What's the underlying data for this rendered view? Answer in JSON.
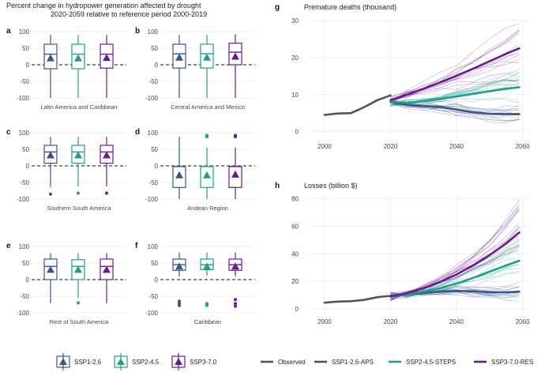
{
  "title_line1": "Percent change in hydropower generation affected by drought",
  "title_line2": "2020-2059 relative to reference period 2000-2019",
  "colors": {
    "ssp126": "#3b528b",
    "ssp245": "#1f9e89",
    "ssp370": "#6a1b8a",
    "observed": "#555555"
  },
  "chart_data": [
    {
      "type": "box",
      "title": "Percent change in hydropower generation affected by drought 2020-2059 relative to reference period 2000-2019",
      "ylim": [
        -100,
        100
      ],
      "yticks": [
        "100",
        "50",
        "0",
        "-50",
        "-100"
      ],
      "series_names": [
        "SSP1-2.6",
        "SSP2-4.5",
        "SSP3-7.0"
      ],
      "panels": [
        {
          "letter": "a",
          "region": "Latin America and Caribbean",
          "boxes": [
            {
              "series": "SSP1-2.6",
              "whisker_low": -100,
              "q1": -12,
              "median": 32,
              "q3": 62,
              "whisker_high": 90,
              "mean": 20,
              "outliers": []
            },
            {
              "series": "SSP2-4.5",
              "whisker_low": -100,
              "q1": -12,
              "median": 32,
              "q3": 62,
              "whisker_high": 90,
              "mean": 20,
              "outliers": []
            },
            {
              "series": "SSP3-7.0",
              "whisker_low": -100,
              "q1": -10,
              "median": 32,
              "q3": 62,
              "whisker_high": 90,
              "mean": 21,
              "outliers": []
            }
          ]
        },
        {
          "letter": "b",
          "region": "Central America and Mexico",
          "boxes": [
            {
              "series": "SSP1-2.6",
              "whisker_low": -100,
              "q1": -10,
              "median": 33,
              "q3": 62,
              "whisker_high": 90,
              "mean": 22,
              "outliers": []
            },
            {
              "series": "SSP2-4.5",
              "whisker_low": -100,
              "q1": -10,
              "median": 33,
              "q3": 62,
              "whisker_high": 90,
              "mean": 22,
              "outliers": []
            },
            {
              "series": "SSP3-7.0",
              "whisker_low": -100,
              "q1": 0,
              "median": 38,
              "q3": 65,
              "whisker_high": 92,
              "mean": 25,
              "outliers": []
            }
          ]
        },
        {
          "letter": "c",
          "region": "Southern South America",
          "boxes": [
            {
              "series": "SSP1-2.6",
              "whisker_low": -65,
              "q1": 8,
              "median": 42,
              "q3": 62,
              "whisker_high": 88,
              "mean": 32,
              "outliers": [
                -85
              ]
            },
            {
              "series": "SSP2-4.5",
              "whisker_low": -62,
              "q1": 8,
              "median": 42,
              "q3": 62,
              "whisker_high": 88,
              "mean": 32,
              "outliers": [
                -82
              ]
            },
            {
              "series": "SSP3-7.0",
              "whisker_low": -62,
              "q1": 8,
              "median": 42,
              "q3": 62,
              "whisker_high": 88,
              "mean": 32,
              "outliers": [
                -82
              ]
            }
          ]
        },
        {
          "letter": "d",
          "region": "Andean Region",
          "boxes": [
            {
              "series": "SSP1-2.6",
              "whisker_low": -100,
              "q1": -65,
              "median": -2,
              "q3": -2,
              "whisker_high": 88,
              "mean": -28,
              "outliers": []
            },
            {
              "series": "SSP2-4.5",
              "whisker_low": -100,
              "q1": -65,
              "median": -2,
              "q3": -2,
              "whisker_high": 55,
              "mean": -28,
              "outliers": [
                88,
                92
              ]
            },
            {
              "series": "SSP3-7.0",
              "whisker_low": -100,
              "q1": -65,
              "median": -2,
              "q3": -2,
              "whisker_high": 55,
              "mean": -26,
              "outliers": [
                88,
                92
              ]
            }
          ]
        },
        {
          "letter": "e",
          "region": "Rest of South America",
          "boxes": [
            {
              "series": "SSP1-2.6",
              "whisker_low": -72,
              "q1": 0,
              "median": 40,
              "q3": 62,
              "whisker_high": 80,
              "mean": 30,
              "outliers": []
            },
            {
              "series": "SSP2-4.5",
              "whisker_low": -55,
              "q1": 0,
              "median": 40,
              "q3": 60,
              "whisker_high": 80,
              "mean": 30,
              "outliers": [
                -70
              ]
            },
            {
              "series": "SSP3-7.0",
              "whisker_low": -72,
              "q1": 0,
              "median": 40,
              "q3": 62,
              "whisker_high": 80,
              "mean": 30,
              "outliers": []
            }
          ]
        },
        {
          "letter": "f",
          "region": "Caribbean",
          "boxes": [
            {
              "series": "SSP1-2.6",
              "whisker_low": 10,
              "q1": 28,
              "median": 45,
              "q3": 62,
              "whisker_high": 82,
              "mean": 40,
              "outliers": [
                -65,
                -72,
                -78
              ]
            },
            {
              "series": "SSP2-4.5",
              "whisker_low": 12,
              "q1": 30,
              "median": 45,
              "q3": 62,
              "whisker_high": 82,
              "mean": 40,
              "outliers": [
                -72,
                -78
              ]
            },
            {
              "series": "SSP3-7.0",
              "whisker_low": 10,
              "q1": 28,
              "median": 45,
              "q3": 62,
              "whisker_high": 82,
              "mean": 40,
              "outliers": [
                -60,
                -72,
                -80
              ]
            }
          ]
        }
      ]
    },
    {
      "type": "line",
      "letter": "g",
      "title": "Premature deaths (thousand)",
      "xlim": [
        1995,
        2062
      ],
      "ylim": [
        -2,
        30
      ],
      "xticks": [
        2000,
        2020,
        2040,
        2060
      ],
      "yticks": [
        0,
        10,
        20,
        30
      ],
      "series": [
        {
          "name": "Observed",
          "x": [
            2000,
            2004,
            2008,
            2012,
            2016,
            2020
          ],
          "y": [
            4.5,
            4.9,
            5.0,
            6.6,
            8.5,
            9.8
          ]
        },
        {
          "name": "SSP1-2.6-APS",
          "x": [
            2020,
            2025,
            2030,
            2035,
            2040,
            2045,
            2050,
            2055,
            2059
          ],
          "y": [
            8.0,
            7.2,
            6.9,
            6.6,
            6.0,
            5.2,
            4.8,
            4.7,
            4.7
          ]
        },
        {
          "name": "SSP2-4.5-STEPS",
          "x": [
            2020,
            2025,
            2030,
            2035,
            2040,
            2045,
            2050,
            2055,
            2059
          ],
          "y": [
            8.0,
            7.8,
            8.2,
            8.8,
            9.5,
            10.2,
            10.9,
            11.6,
            12.0
          ]
        },
        {
          "name": "SSP3-7.0-RES",
          "x": [
            2020,
            2025,
            2030,
            2035,
            2040,
            2045,
            2050,
            2055,
            2059
          ],
          "y": [
            8.5,
            10.0,
            11.6,
            13.3,
            15.1,
            17.0,
            19.0,
            21.0,
            22.5
          ]
        }
      ]
    },
    {
      "type": "line",
      "letter": "h",
      "title": "Losses (billion $)",
      "xlim": [
        1995,
        2062
      ],
      "ylim": [
        -4,
        82
      ],
      "xticks": [
        2000,
        2020,
        2040,
        2060
      ],
      "yticks": [
        0,
        20,
        40,
        60,
        80
      ],
      "series": [
        {
          "name": "Observed",
          "x": [
            2000,
            2004,
            2008,
            2012,
            2016,
            2020
          ],
          "y": [
            4.5,
            5.3,
            5.6,
            6.5,
            8.5,
            9.5
          ]
        },
        {
          "name": "SSP1-2.6-APS",
          "x": [
            2020,
            2025,
            2030,
            2035,
            2040,
            2045,
            2050,
            2055,
            2059
          ],
          "y": [
            9.0,
            10.5,
            11.5,
            12.5,
            13.0,
            12.8,
            12.2,
            12.0,
            12.5
          ]
        },
        {
          "name": "SSP2-4.5-STEPS",
          "x": [
            2020,
            2025,
            2030,
            2035,
            2040,
            2045,
            2050,
            2055,
            2059
          ],
          "y": [
            9.0,
            10.5,
            12.5,
            15.0,
            18.5,
            22.5,
            27.0,
            31.5,
            35.0
          ]
        },
        {
          "name": "SSP3-7.0-RES",
          "x": [
            2020,
            2025,
            2030,
            2035,
            2040,
            2045,
            2050,
            2055,
            2059
          ],
          "y": [
            9.0,
            11.5,
            15.0,
            19.5,
            25.0,
            31.5,
            39.0,
            47.5,
            55.5
          ]
        }
      ]
    }
  ],
  "legend_left": [
    "SSP1-2.6",
    "SSP2-4.5",
    "SSP3-7.0"
  ],
  "legend_right": [
    "Observed",
    "SSP1-2.6-APS",
    "SSP2-4.5-STEPS",
    "SSP3-7.0-RES"
  ]
}
